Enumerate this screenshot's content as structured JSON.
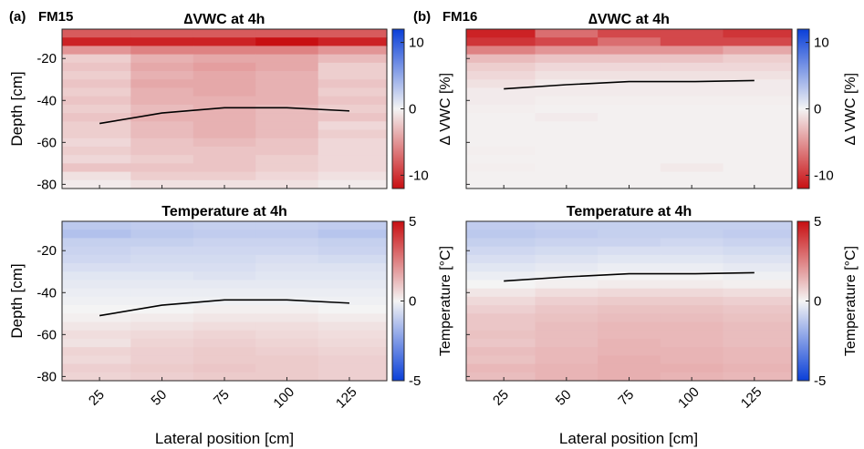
{
  "figure": {
    "x_axis_label": "Lateral position [cm]",
    "colors": {
      "neg_strong": "#0a3fd8",
      "neutral": "#f4f4f4",
      "pos_strong": "#c80f12",
      "line": "#000000"
    }
  },
  "chart_data": [
    {
      "id": "a-vwc",
      "type": "heatmap",
      "panel_label": "(a)",
      "site": "FM15",
      "title": "∆VWC at 4h",
      "ylabel": "Depth [cm]",
      "colorbar_label": "∆ VWC [%]",
      "colorbar_ticks": [
        "10",
        "0",
        "-10"
      ],
      "clim": [
        -12,
        12
      ],
      "x_ticks": [
        "25",
        "50",
        "75",
        "100",
        "125"
      ],
      "y_ticks": [
        "-20",
        "-40",
        "-60",
        "-80"
      ],
      "x_range": [
        10,
        140
      ],
      "y_range": [
        -82,
        -6
      ],
      "x_edges": [
        10,
        37.5,
        62.5,
        87.5,
        112.5,
        140
      ],
      "y_edges": [
        -6,
        -10,
        -14,
        -18,
        -22,
        -26,
        -30,
        -34,
        -38,
        -42,
        -46,
        -50,
        -54,
        -58,
        -62,
        -66,
        -70,
        -74,
        -78,
        -82
      ],
      "values": [
        [
          8,
          8,
          8,
          8,
          8
        ],
        [
          11,
          11,
          11,
          12,
          11
        ],
        [
          5,
          6,
          6,
          6,
          5
        ],
        [
          2,
          3.5,
          4,
          4,
          3
        ],
        [
          2.5,
          4,
          4.5,
          4,
          2
        ],
        [
          2,
          3.5,
          4,
          3.5,
          2
        ],
        [
          2.5,
          4,
          4,
          3.5,
          2.5
        ],
        [
          2,
          3.5,
          4,
          3.5,
          2
        ],
        [
          2.5,
          3.5,
          3.5,
          3.5,
          2.5
        ],
        [
          2,
          3,
          3.5,
          3,
          2
        ],
        [
          2.5,
          3.5,
          3.5,
          3,
          2.5
        ],
        [
          2,
          3,
          3.5,
          3,
          1.5
        ],
        [
          2,
          3,
          3.5,
          3,
          2
        ],
        [
          1.5,
          2.5,
          3,
          2.5,
          1.5
        ],
        [
          2,
          2.5,
          2.5,
          2.5,
          1.5
        ],
        [
          1.5,
          2,
          2.5,
          2,
          1.5
        ],
        [
          2.5,
          2.5,
          2.5,
          2,
          1.5
        ],
        [
          1,
          2,
          2,
          1.5,
          1
        ],
        [
          0.5,
          1,
          1,
          1,
          0.5
        ]
      ],
      "line": {
        "x": [
          25,
          50,
          75,
          100,
          125
        ],
        "y": [
          -51,
          -46,
          -43.5,
          -43.5,
          -45
        ]
      }
    },
    {
      "id": "b-vwc",
      "type": "heatmap",
      "panel_label": "(b)",
      "site": "FM16",
      "title": "∆VWC at 4h",
      "ylabel": "",
      "colorbar_label": "∆ VWC [%]",
      "colorbar_ticks": [
        "10",
        "0",
        "-10"
      ],
      "clim": [
        -12,
        12
      ],
      "x_ticks": [
        "25",
        "50",
        "75",
        "100",
        "125"
      ],
      "y_ticks": [],
      "x_range": [
        10,
        140
      ],
      "y_range": [
        -82,
        -6
      ],
      "x_edges": [
        10,
        37.5,
        62.5,
        87.5,
        112.5,
        140
      ],
      "y_edges": [
        -6,
        -10,
        -14,
        -18,
        -22,
        -26,
        -30,
        -34,
        -38,
        -42,
        -46,
        -50,
        -54,
        -58,
        -62,
        -66,
        -70,
        -74,
        -78,
        -82
      ],
      "values": [
        [
          11,
          7,
          9,
          9,
          10
        ],
        [
          10,
          9,
          7,
          9,
          9
        ],
        [
          6,
          5,
          5,
          5,
          4
        ],
        [
          3,
          2.5,
          2.5,
          2.5,
          2
        ],
        [
          2,
          1.5,
          1.5,
          1.5,
          1.5
        ],
        [
          1.5,
          1,
          1,
          1,
          1
        ],
        [
          1,
          0.5,
          0.5,
          0.5,
          0.5
        ],
        [
          0.5,
          0.5,
          0.5,
          0.5,
          0.5
        ],
        [
          0.5,
          0.3,
          0.3,
          0.3,
          0.3
        ],
        [
          0.3,
          0.2,
          0.2,
          0.2,
          0.2
        ],
        [
          0.2,
          0.5,
          0.2,
          0.2,
          0.2
        ],
        [
          0.2,
          0.2,
          0.2,
          0.2,
          0.2
        ],
        [
          0.2,
          0.2,
          0.2,
          0.2,
          0.2
        ],
        [
          0.2,
          0.2,
          0.2,
          0.2,
          0.2
        ],
        [
          0.3,
          0.2,
          0.2,
          0.2,
          0.2
        ],
        [
          0.2,
          0.2,
          0.2,
          0.2,
          0.2
        ],
        [
          0.3,
          0.2,
          0.2,
          0.6,
          0.2
        ],
        [
          0.2,
          0.2,
          0.2,
          0.2,
          0.2
        ],
        [
          0.2,
          0.2,
          0.2,
          0.2,
          0.2
        ]
      ],
      "line": {
        "x": [
          25,
          50,
          75,
          100,
          125
        ],
        "y": [
          -34.5,
          -32.5,
          -31,
          -31,
          -30.5
        ]
      }
    },
    {
      "id": "a-temp",
      "type": "heatmap",
      "panel_label": "",
      "site": "",
      "title": "Temperature at 4h",
      "ylabel": "Depth [cm]",
      "colorbar_label": "Temperature [°C]",
      "colorbar_ticks": [
        "5",
        "0",
        "-5"
      ],
      "clim": [
        -5,
        5
      ],
      "x_ticks": [
        "25",
        "50",
        "75",
        "100",
        "125"
      ],
      "y_ticks": [
        "-20",
        "-40",
        "-60",
        "-80"
      ],
      "x_range": [
        10,
        140
      ],
      "y_range": [
        -82,
        -6
      ],
      "x_edges": [
        10,
        37.5,
        62.5,
        87.5,
        112.5,
        140
      ],
      "y_edges": [
        -6,
        -10,
        -14,
        -18,
        -22,
        -26,
        -30,
        -34,
        -38,
        -42,
        -46,
        -50,
        -54,
        -58,
        -62,
        -66,
        -70,
        -74,
        -78,
        -82
      ],
      "values": [
        [
          -1.2,
          -1.1,
          -1.0,
          -1.0,
          -1.1
        ],
        [
          -1.4,
          -1.2,
          -1.1,
          -1.1,
          -1.3
        ],
        [
          -1.0,
          -1.0,
          -0.9,
          -0.9,
          -1.0
        ],
        [
          -0.9,
          -0.8,
          -0.8,
          -0.8,
          -0.9
        ],
        [
          -0.8,
          -0.7,
          -0.7,
          -0.6,
          -0.7
        ],
        [
          -0.6,
          -0.6,
          -0.6,
          -0.5,
          -0.5
        ],
        [
          -0.4,
          -0.4,
          -0.5,
          -0.4,
          -0.4
        ],
        [
          -0.3,
          -0.3,
          -0.3,
          -0.3,
          -0.3
        ],
        [
          -0.2,
          -0.2,
          -0.2,
          -0.2,
          -0.2
        ],
        [
          -0.1,
          -0.1,
          -0.1,
          -0.1,
          -0.1
        ],
        [
          0.0,
          0.0,
          0.1,
          0.1,
          0.0
        ],
        [
          0.1,
          0.2,
          0.3,
          0.3,
          0.2
        ],
        [
          0.3,
          0.4,
          0.5,
          0.5,
          0.4
        ],
        [
          0.5,
          0.6,
          0.7,
          0.6,
          0.5
        ],
        [
          0.4,
          0.7,
          0.8,
          0.7,
          0.6
        ],
        [
          0.7,
          0.8,
          0.9,
          0.8,
          0.7
        ],
        [
          0.6,
          0.8,
          0.9,
          0.9,
          0.8
        ],
        [
          0.8,
          0.9,
          1.0,
          0.9,
          0.8
        ],
        [
          0.7,
          0.8,
          0.9,
          0.9,
          0.8
        ]
      ],
      "line": {
        "x": [
          25,
          50,
          75,
          100,
          125
        ],
        "y": [
          -51,
          -46,
          -43.5,
          -43.5,
          -45
        ]
      }
    },
    {
      "id": "b-temp",
      "type": "heatmap",
      "panel_label": "",
      "site": "",
      "title": "Temperature at 4h",
      "ylabel": "",
      "colorbar_label": "Temperature [°C]",
      "colorbar_ticks": [
        "5",
        "0",
        "-5"
      ],
      "clim": [
        -5,
        5
      ],
      "x_ticks": [
        "25",
        "50",
        "75",
        "100",
        "125"
      ],
      "y_ticks": [],
      "x_range": [
        10,
        140
      ],
      "y_range": [
        -82,
        -6
      ],
      "x_edges": [
        10,
        37.5,
        62.5,
        87.5,
        112.5,
        140
      ],
      "y_edges": [
        -6,
        -10,
        -14,
        -18,
        -22,
        -26,
        -30,
        -34,
        -38,
        -42,
        -46,
        -50,
        -54,
        -58,
        -62,
        -66,
        -70,
        -74,
        -78,
        -82
      ],
      "values": [
        [
          -1.1,
          -1.0,
          -1.0,
          -1.0,
          -1.0
        ],
        [
          -1.2,
          -1.1,
          -1.0,
          -1.0,
          -1.1
        ],
        [
          -1.0,
          -0.9,
          -0.9,
          -0.8,
          -0.9
        ],
        [
          -0.8,
          -0.7,
          -0.6,
          -0.6,
          -0.7
        ],
        [
          -0.6,
          -0.5,
          -0.4,
          -0.4,
          -0.5
        ],
        [
          -0.4,
          -0.3,
          -0.2,
          -0.2,
          -0.3
        ],
        [
          -0.2,
          -0.1,
          0.0,
          0.0,
          -0.1
        ],
        [
          0.0,
          0.1,
          0.2,
          0.2,
          0.1
        ],
        [
          0.3,
          0.5,
          0.6,
          0.6,
          0.5
        ],
        [
          0.6,
          0.8,
          0.9,
          0.9,
          0.8
        ],
        [
          0.8,
          1.0,
          1.1,
          1.1,
          1.0
        ],
        [
          1.0,
          1.1,
          1.2,
          1.2,
          1.1
        ],
        [
          1.0,
          1.2,
          1.3,
          1.3,
          1.2
        ],
        [
          1.1,
          1.2,
          1.3,
          1.3,
          1.2
        ],
        [
          1.0,
          1.2,
          1.4,
          1.3,
          1.2
        ],
        [
          1.2,
          1.3,
          1.4,
          1.4,
          1.3
        ],
        [
          1.1,
          1.3,
          1.5,
          1.4,
          1.3
        ],
        [
          1.3,
          1.4,
          1.5,
          1.5,
          1.4
        ],
        [
          1.2,
          1.4,
          1.5,
          1.4,
          1.3
        ]
      ],
      "line": {
        "x": [
          25,
          50,
          75,
          100,
          125
        ],
        "y": [
          -34.5,
          -32.5,
          -31,
          -31,
          -30.5
        ]
      }
    }
  ]
}
